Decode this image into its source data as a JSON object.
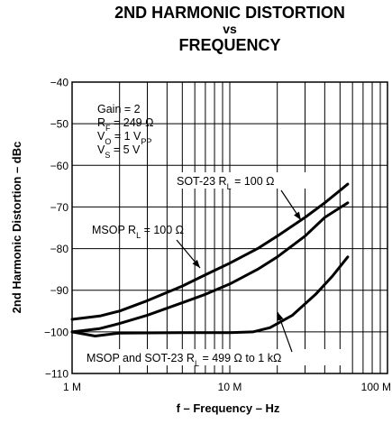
{
  "chart_data": {
    "type": "line",
    "title_lines": [
      "2ND HARMONIC DISTORTION",
      "vs",
      "FREQUENCY"
    ],
    "xlabel": "f – Frequency – Hz",
    "ylabel": "2nd Harmonic Distortion – dBc",
    "x_scale": "log",
    "xlim": [
      1000000,
      100000000
    ],
    "ylim": [
      -110,
      -40
    ],
    "grid": true,
    "x_ticks": [
      {
        "value": 1000000,
        "label": "1 M"
      },
      {
        "value": 10000000,
        "label": "10 M"
      },
      {
        "value": 100000000,
        "label": "100 M"
      }
    ],
    "y_ticks": [
      -40,
      -50,
      -60,
      -70,
      -80,
      -90,
      -100,
      -110
    ],
    "conditions": [
      {
        "main": "Gain = 2",
        "sub": "",
        "tail": ""
      },
      {
        "main": "R",
        "sub": "F",
        "tail": " = 249 Ω"
      },
      {
        "main": "V",
        "sub": "O",
        "tail": " = 1 V"
      },
      {
        "main": "V",
        "sub": "S",
        "tail": " = 5 V"
      }
    ],
    "conditions_vo_unit_sub": "PP",
    "series": [
      {
        "name": "SOT-23 RL = 100 Ω",
        "label": {
          "main": "SOT-23 R",
          "sub": "L",
          "tail": " = 100 Ω"
        },
        "points": [
          [
            1000000,
            -100
          ],
          [
            1500000,
            -99.2
          ],
          [
            2000000,
            -98
          ],
          [
            3000000,
            -96
          ],
          [
            5000000,
            -93
          ],
          [
            7000000,
            -91
          ],
          [
            10000000,
            -88.5
          ],
          [
            15000000,
            -85
          ],
          [
            20000000,
            -82
          ],
          [
            30000000,
            -77
          ],
          [
            40000000,
            -72.5
          ],
          [
            56000000,
            -69
          ]
        ]
      },
      {
        "name": "MSOP RL = 100 Ω",
        "label": {
          "main": "MSOP R",
          "sub": "L",
          "tail": " = 100 Ω"
        },
        "points": [
          [
            1000000,
            -97
          ],
          [
            1500000,
            -96.2
          ],
          [
            2000000,
            -95
          ],
          [
            3000000,
            -92.5
          ],
          [
            5000000,
            -89
          ],
          [
            7000000,
            -86.3
          ],
          [
            10000000,
            -83.5
          ],
          [
            15000000,
            -80
          ],
          [
            20000000,
            -77
          ],
          [
            30000000,
            -72.5
          ],
          [
            40000000,
            -69
          ],
          [
            56000000,
            -64.5
          ]
        ]
      },
      {
        "name": "MSOP and SOT-23 RL = 499 Ω to 1 kΩ",
        "label": {
          "main": "MSOP and SOT-23 R",
          "sub": "L",
          "tail": " = 499 Ω to 1 kΩ"
        },
        "points": [
          [
            1000000,
            -100
          ],
          [
            1400000,
            -101
          ],
          [
            2000000,
            -100.3
          ],
          [
            5000000,
            -100.2
          ],
          [
            10000000,
            -100.2
          ],
          [
            14000000,
            -100
          ],
          [
            18000000,
            -99
          ],
          [
            25000000,
            -96
          ],
          [
            35000000,
            -91
          ],
          [
            45000000,
            -86.5
          ],
          [
            56000000,
            -82
          ]
        ]
      }
    ]
  }
}
